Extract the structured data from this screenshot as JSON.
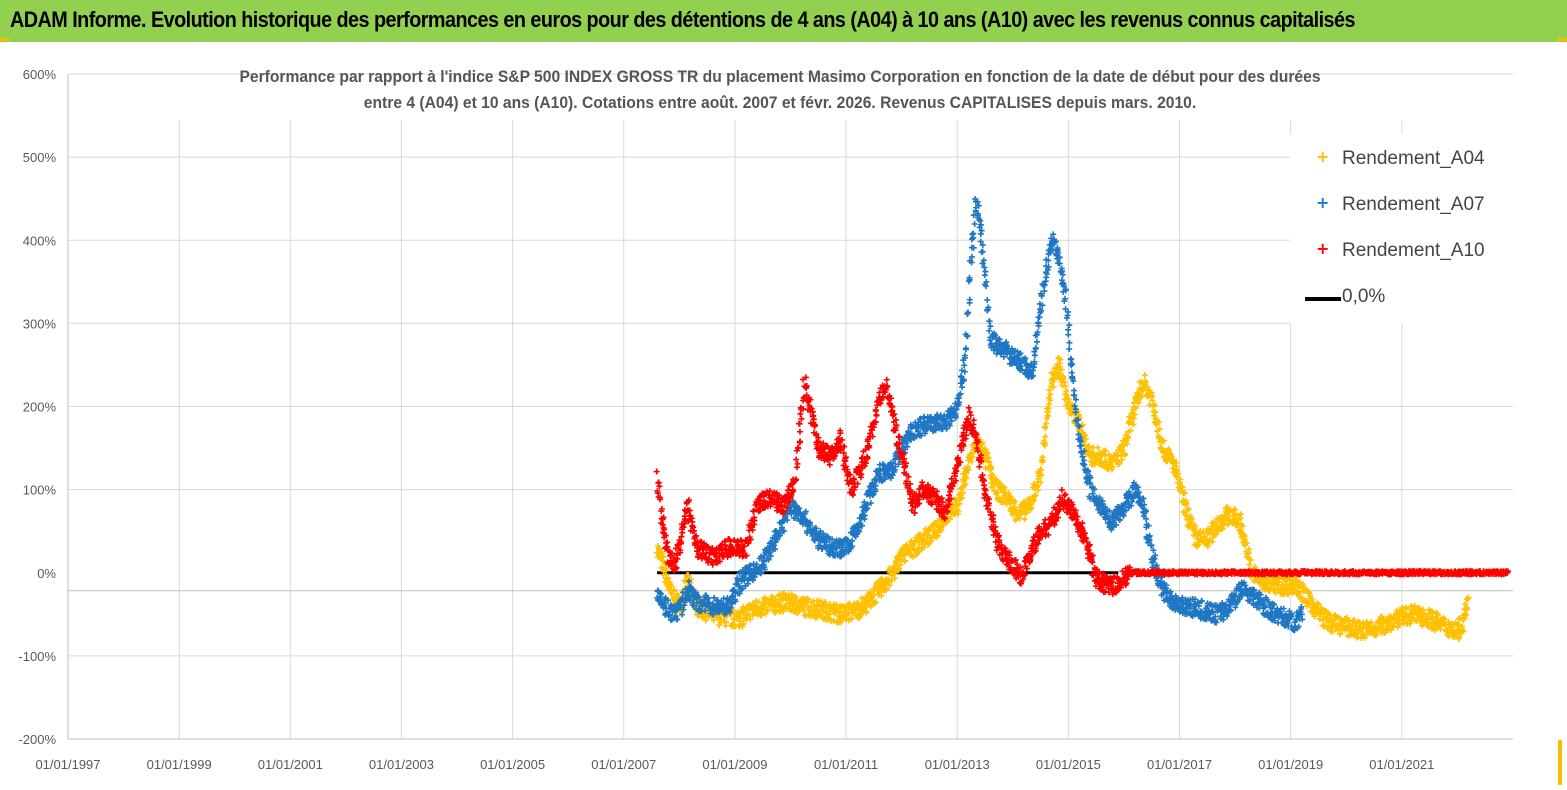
{
  "banner": {
    "text": "ADAM Informe. Evolution historique des performances en euros pour des détentions de 4 ans (A04) à 10 ans (A10) avec les revenus connus capitalisés"
  },
  "colors": {
    "banner_bg": "#92d050",
    "accent_corner": "#f2c100",
    "a04": "#ffc000",
    "a07": "#1f77c4",
    "a10": "#ff0000",
    "zero_line": "#000000"
  },
  "chart_data": {
    "type": "scatter",
    "title_lines": [
      "Performance par rapport à l'indice S&P 500 INDEX GROSS TR  du placement Masimo Corporation en fonction de la date de début pour des durées",
      "entre 4 (A04) et 10 ans (A10). Cotations entre août. 2007 et févr. 2026. Revenus CAPITALISES depuis mars. 2010."
    ],
    "xlabel": "",
    "ylabel": "",
    "x_range": [
      1997.0,
      2023.0
    ],
    "ylim": [
      -200,
      600
    ],
    "y_ticks": [
      {
        "value": 600,
        "label": "600%"
      },
      {
        "value": 500,
        "label": "500%"
      },
      {
        "value": 400,
        "label": "400%"
      },
      {
        "value": 300,
        "label": "300%"
      },
      {
        "value": 200,
        "label": "200%"
      },
      {
        "value": 100,
        "label": "100%"
      },
      {
        "value": 0,
        "label": "0%"
      },
      {
        "value": -100,
        "label": "-100%"
      },
      {
        "value": -200,
        "label": "-200%"
      }
    ],
    "x_ticks": [
      {
        "value": 1997,
        "label": "01/01/1997"
      },
      {
        "value": 1999,
        "label": "01/01/1999"
      },
      {
        "value": 2001,
        "label": "01/01/2001"
      },
      {
        "value": 2003,
        "label": "01/01/2003"
      },
      {
        "value": 2005,
        "label": "01/01/2005"
      },
      {
        "value": 2007,
        "label": "01/01/2007"
      },
      {
        "value": 2009,
        "label": "01/01/2009"
      },
      {
        "value": 2011,
        "label": "01/01/2011"
      },
      {
        "value": 2013,
        "label": "01/01/2013"
      },
      {
        "value": 2015,
        "label": "01/01/2015"
      },
      {
        "value": 2017,
        "label": "01/01/2017"
      },
      {
        "value": 2019,
        "label": "01/01/2019"
      },
      {
        "value": 2021,
        "label": "01/01/2021"
      }
    ],
    "grid": true,
    "legend_position": "top-right",
    "series": [
      {
        "name": "Rendement_A04",
        "marker": "+",
        "points": [
          [
            2007.6,
            30
          ],
          [
            2007.7,
            10
          ],
          [
            2007.85,
            -25
          ],
          [
            2008.0,
            -40
          ],
          [
            2008.15,
            -10
          ],
          [
            2008.3,
            -40
          ],
          [
            2008.6,
            -50
          ],
          [
            2008.9,
            -55
          ],
          [
            2009.1,
            -55
          ],
          [
            2009.3,
            -45
          ],
          [
            2009.6,
            -40
          ],
          [
            2009.9,
            -35
          ],
          [
            2010.2,
            -40
          ],
          [
            2010.6,
            -45
          ],
          [
            2010.9,
            -50
          ],
          [
            2011.2,
            -45
          ],
          [
            2011.4,
            -35
          ],
          [
            2011.6,
            -20
          ],
          [
            2011.8,
            -5
          ],
          [
            2012.0,
            20
          ],
          [
            2012.2,
            30
          ],
          [
            2012.4,
            40
          ],
          [
            2012.6,
            50
          ],
          [
            2012.8,
            70
          ],
          [
            2013.0,
            80
          ],
          [
            2013.2,
            130
          ],
          [
            2013.35,
            160
          ],
          [
            2013.5,
            140
          ],
          [
            2013.7,
            100
          ],
          [
            2013.9,
            90
          ],
          [
            2014.1,
            70
          ],
          [
            2014.3,
            80
          ],
          [
            2014.5,
            120
          ],
          [
            2014.7,
            230
          ],
          [
            2014.85,
            250
          ],
          [
            2015.0,
            200
          ],
          [
            2015.2,
            180
          ],
          [
            2015.4,
            140
          ],
          [
            2015.6,
            140
          ],
          [
            2015.8,
            130
          ],
          [
            2016.0,
            150
          ],
          [
            2016.2,
            200
          ],
          [
            2016.35,
            230
          ],
          [
            2016.5,
            210
          ],
          [
            2016.7,
            150
          ],
          [
            2016.9,
            130
          ],
          [
            2017.1,
            80
          ],
          [
            2017.3,
            40
          ],
          [
            2017.5,
            40
          ],
          [
            2017.7,
            60
          ],
          [
            2017.9,
            70
          ],
          [
            2018.1,
            60
          ],
          [
            2018.3,
            0
          ],
          [
            2018.5,
            -10
          ],
          [
            2018.8,
            -15
          ],
          [
            2019.1,
            -15
          ],
          [
            2019.4,
            -40
          ],
          [
            2019.7,
            -60
          ],
          [
            2020.0,
            -65
          ],
          [
            2020.3,
            -70
          ],
          [
            2020.6,
            -65
          ],
          [
            2020.9,
            -55
          ],
          [
            2021.2,
            -50
          ],
          [
            2021.5,
            -55
          ],
          [
            2021.8,
            -65
          ],
          [
            2022.0,
            -70
          ],
          [
            2022.1,
            -60
          ],
          [
            2022.2,
            -30
          ]
        ]
      },
      {
        "name": "Rendement_A07",
        "marker": "+",
        "points": [
          [
            2007.6,
            -20
          ],
          [
            2007.75,
            -40
          ],
          [
            2007.9,
            -50
          ],
          [
            2008.05,
            -40
          ],
          [
            2008.15,
            -20
          ],
          [
            2008.3,
            -35
          ],
          [
            2008.6,
            -40
          ],
          [
            2008.9,
            -40
          ],
          [
            2009.1,
            -10
          ],
          [
            2009.3,
            0
          ],
          [
            2009.5,
            10
          ],
          [
            2009.8,
            50
          ],
          [
            2010.0,
            80
          ],
          [
            2010.2,
            70
          ],
          [
            2010.5,
            40
          ],
          [
            2010.8,
            30
          ],
          [
            2011.0,
            30
          ],
          [
            2011.2,
            50
          ],
          [
            2011.4,
            90
          ],
          [
            2011.6,
            120
          ],
          [
            2011.8,
            120
          ],
          [
            2012.0,
            150
          ],
          [
            2012.2,
            170
          ],
          [
            2012.5,
            180
          ],
          [
            2012.8,
            180
          ],
          [
            2013.0,
            200
          ],
          [
            2013.15,
            260
          ],
          [
            2013.25,
            380
          ],
          [
            2013.35,
            450
          ],
          [
            2013.45,
            390
          ],
          [
            2013.6,
            280
          ],
          [
            2013.8,
            270
          ],
          [
            2014.0,
            260
          ],
          [
            2014.2,
            250
          ],
          [
            2014.35,
            240
          ],
          [
            2014.5,
            320
          ],
          [
            2014.7,
            400
          ],
          [
            2014.8,
            390
          ],
          [
            2014.95,
            330
          ],
          [
            2015.05,
            250
          ],
          [
            2015.2,
            160
          ],
          [
            2015.4,
            100
          ],
          [
            2015.6,
            80
          ],
          [
            2015.8,
            60
          ],
          [
            2016.0,
            80
          ],
          [
            2016.2,
            100
          ],
          [
            2016.35,
            80
          ],
          [
            2016.5,
            20
          ],
          [
            2016.7,
            -20
          ],
          [
            2016.9,
            -35
          ],
          [
            2017.1,
            -40
          ],
          [
            2017.4,
            -45
          ],
          [
            2017.7,
            -50
          ],
          [
            2017.9,
            -40
          ],
          [
            2018.1,
            -20
          ],
          [
            2018.3,
            -25
          ],
          [
            2018.6,
            -45
          ],
          [
            2018.9,
            -55
          ],
          [
            2019.1,
            -60
          ],
          [
            2019.2,
            -50
          ]
        ]
      },
      {
        "name": "Rendement_A10",
        "marker": "+",
        "points": [
          [
            2007.6,
            120
          ],
          [
            2007.7,
            60
          ],
          [
            2007.8,
            20
          ],
          [
            2007.9,
            10
          ],
          [
            2008.0,
            30
          ],
          [
            2008.15,
            80
          ],
          [
            2008.3,
            30
          ],
          [
            2008.6,
            20
          ],
          [
            2008.9,
            30
          ],
          [
            2009.2,
            30
          ],
          [
            2009.4,
            80
          ],
          [
            2009.6,
            90
          ],
          [
            2009.9,
            80
          ],
          [
            2010.1,
            120
          ],
          [
            2010.25,
            230
          ],
          [
            2010.35,
            200
          ],
          [
            2010.5,
            150
          ],
          [
            2010.7,
            140
          ],
          [
            2010.9,
            160
          ],
          [
            2011.1,
            100
          ],
          [
            2011.3,
            130
          ],
          [
            2011.5,
            180
          ],
          [
            2011.7,
            230
          ],
          [
            2011.9,
            170
          ],
          [
            2012.05,
            130
          ],
          [
            2012.2,
            80
          ],
          [
            2012.4,
            100
          ],
          [
            2012.6,
            90
          ],
          [
            2012.8,
            70
          ],
          [
            2013.0,
            130
          ],
          [
            2013.2,
            190
          ],
          [
            2013.35,
            160
          ],
          [
            2013.5,
            100
          ],
          [
            2013.7,
            40
          ],
          [
            2013.85,
            20
          ],
          [
            2014.0,
            10
          ],
          [
            2014.15,
            -5
          ],
          [
            2014.3,
            20
          ],
          [
            2014.5,
            50
          ],
          [
            2014.7,
            60
          ],
          [
            2014.9,
            90
          ],
          [
            2015.1,
            70
          ],
          [
            2015.3,
            40
          ],
          [
            2015.5,
            -5
          ],
          [
            2015.7,
            -15
          ],
          [
            2015.9,
            -15
          ],
          [
            2016.1,
            0
          ],
          [
            2016.5,
            0
          ],
          [
            2017.0,
            0
          ],
          [
            2018.0,
            0
          ],
          [
            2019.0,
            0
          ],
          [
            2020.0,
            0
          ],
          [
            2021.0,
            0
          ],
          [
            2022.0,
            0
          ],
          [
            2022.9,
            0
          ]
        ]
      },
      {
        "name": "0,0%",
        "marker": "line",
        "points": [
          [
            2007.6,
            0
          ],
          [
            2015.9,
            0
          ]
        ]
      }
    ]
  }
}
